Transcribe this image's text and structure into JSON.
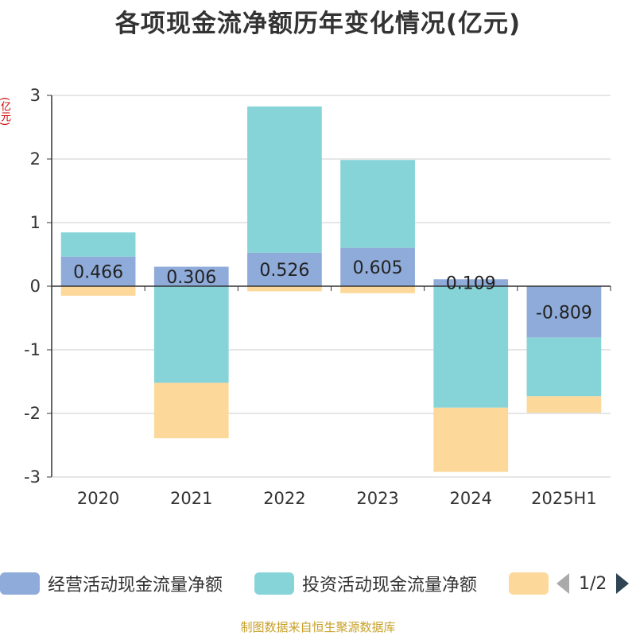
{
  "chart_data": {
    "type": "bar",
    "stacked": true,
    "title": "各项现金流净额历年变化情况(亿元)",
    "ylabel": "(亿元)",
    "categories": [
      "2020",
      "2021",
      "2022",
      "2023",
      "2024",
      "2025H1"
    ],
    "ylim": [
      -3,
      3
    ],
    "yticks": [
      3,
      2,
      1,
      0,
      -1,
      -2,
      -3
    ],
    "grid": true,
    "legend_position": "bottom",
    "series": [
      {
        "name": "经营活动现金流量净额",
        "color": "#8fabd9",
        "values": [
          0.466,
          0.306,
          0.526,
          0.605,
          0.109,
          -0.809
        ],
        "labels": [
          "0.466",
          "0.306",
          "0.526",
          "0.605",
          "0.109",
          "-0.809"
        ]
      },
      {
        "name": "投资活动现金流量净额",
        "color": "#86d4d8",
        "values": [
          0.38,
          -1.52,
          2.3,
          1.38,
          -1.91,
          -0.92
        ]
      },
      {
        "name": "",
        "color": "#fdd89b",
        "values": [
          -0.15,
          -0.87,
          -0.08,
          -0.11,
          -1.01,
          -0.26
        ]
      }
    ]
  },
  "legend": {
    "items": [
      {
        "label": "经营活动现金流量净额",
        "color": "#8fabd9"
      },
      {
        "label": "投资活动现金流量净额",
        "color": "#86d4d8"
      },
      {
        "label": "",
        "color": "#fdd89b"
      }
    ],
    "page_indicator": "1/2"
  },
  "source_note": "制图数据来自恒生聚源数据库"
}
